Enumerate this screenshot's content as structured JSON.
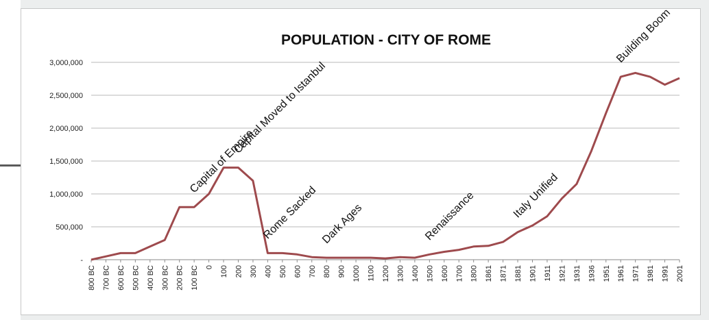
{
  "chart_data": {
    "type": "line",
    "title": "POPULATION - CITY OF ROME",
    "xlabel": "",
    "ylabel": "",
    "ylim": [
      0,
      3000000
    ],
    "yticks": [
      0,
      500000,
      1000000,
      1500000,
      2000000,
      2500000,
      3000000
    ],
    "ytick_labels": [
      "-",
      "500,000",
      "1,000,000",
      "1,500,000",
      "2,000,000",
      "2,500,000",
      "3,000,000"
    ],
    "grid": true,
    "line_color": "#9e4a4d",
    "grid_color": "#b8b8b8",
    "x": [
      "800 BC",
      "700 BC",
      "600 BC",
      "500 BC",
      "400 BC",
      "300 BC",
      "200 BC",
      "100 BC",
      "0",
      "100",
      "200",
      "300",
      "400",
      "500",
      "600",
      "700",
      "800",
      "900",
      "1000",
      "1100",
      "1200",
      "1300",
      "1400",
      "1500",
      "1600",
      "1700",
      "1800",
      "1861",
      "1871",
      "1881",
      "1901",
      "1911",
      "1921",
      "1931",
      "1936",
      "1951",
      "1961",
      "1971",
      "1981",
      "1991",
      "2001"
    ],
    "values": [
      0,
      50000,
      100000,
      100000,
      200000,
      300000,
      800000,
      800000,
      1000000,
      1400000,
      1400000,
      1200000,
      100000,
      100000,
      80000,
      40000,
      30000,
      30000,
      30000,
      30000,
      20000,
      40000,
      30000,
      80000,
      120000,
      150000,
      200000,
      210000,
      270000,
      420000,
      520000,
      660000,
      930000,
      1150000,
      1650000,
      2230000,
      2780000,
      2840000,
      2780000,
      2660000,
      2760000
    ],
    "annotations": [
      {
        "text": "Capital of Empire",
        "x": "100 BC"
      },
      {
        "text": "Capital Moved to Istanbul",
        "x": "200"
      },
      {
        "text": "Rome Sacked",
        "x": "400"
      },
      {
        "text": "Dark Ages",
        "x": "800"
      },
      {
        "text": "Renaissance",
        "x": "1500"
      },
      {
        "text": "Italy Unified",
        "x": "1881"
      },
      {
        "text": "Building Boom",
        "x": "1961"
      }
    ]
  }
}
